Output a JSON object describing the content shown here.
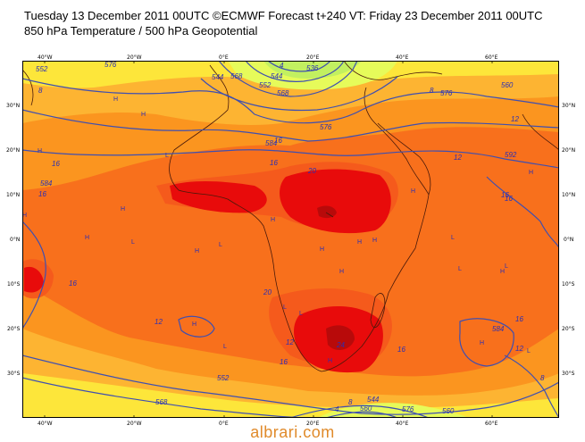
{
  "header": {
    "line1": "Tuesday 13 December 2011 00UTC ©ECMWF Forecast t+240 VT: Friday 23 December 2011 00UTC",
    "line2": "850 hPa Temperature / 500 hPa Geopotential"
  },
  "map": {
    "lon_ticks": [
      "40°W",
      "20°W",
      "0°E",
      "20°E",
      "40°E",
      "60°E"
    ],
    "lat_ticks": [
      "30°N",
      "20°N",
      "10°N",
      "0°N",
      "10°S",
      "20°S",
      "30°S"
    ],
    "temperature_labels": [
      "16",
      "20",
      "16",
      "16",
      "12",
      "16",
      "12",
      "16",
      "20",
      "16",
      "12",
      "16",
      "24",
      "16",
      "16",
      "12",
      "16",
      "4",
      "4",
      "8",
      "8",
      "8",
      "8",
      "12"
    ],
    "contour_labels": [
      "552",
      "576",
      "544",
      "552",
      "536",
      "544",
      "568",
      "576",
      "584",
      "576",
      "560",
      "568",
      "584",
      "592",
      "552",
      "560",
      "544",
      "568",
      "576",
      "560",
      "584"
    ],
    "h_label": "H",
    "l_label": "L",
    "colors": {
      "very_hot": "#e80b0b",
      "hot": "#f55a1c",
      "warm": "#fb8c1f",
      "mild": "#fdb432",
      "cool": "#fde63a",
      "cold": "#e6fb5a",
      "contour": "#3f4fb0",
      "coast": "#4a1a0a"
    }
  },
  "watermark": "albrari.com"
}
